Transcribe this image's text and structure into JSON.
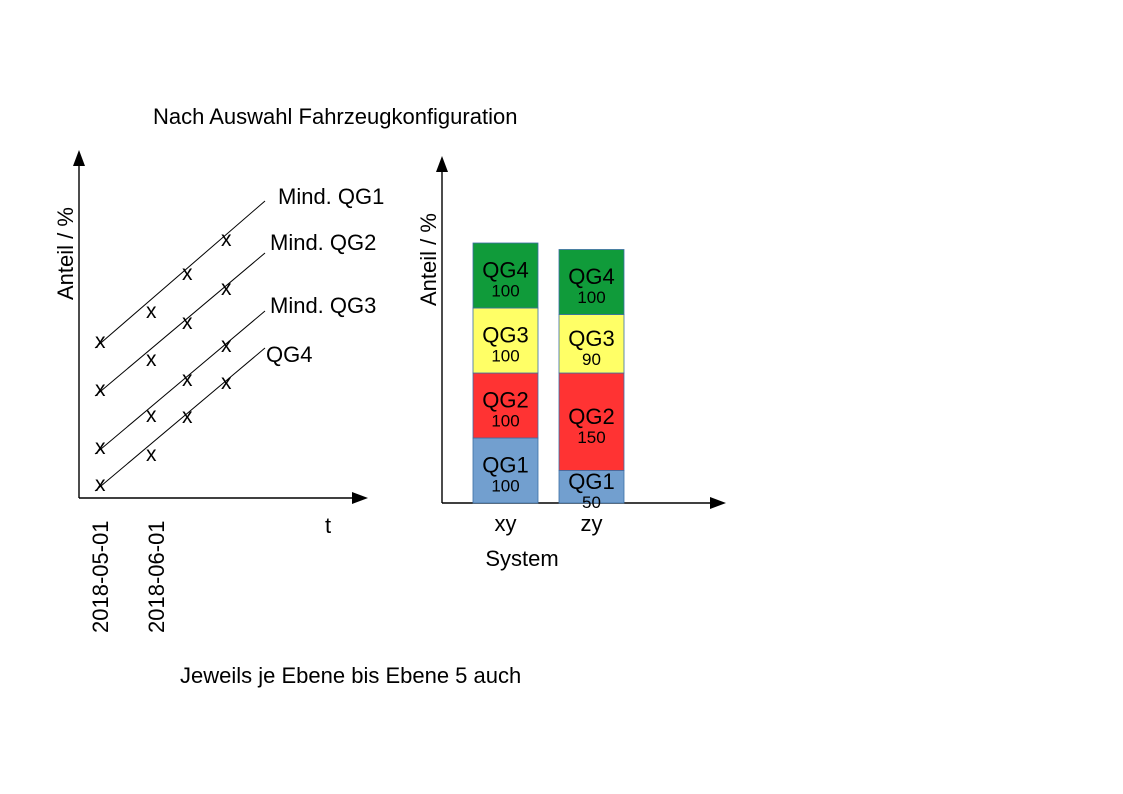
{
  "title": "Nach Auswahl Fahrzeugkonfiguration",
  "footer": "Jeweils je Ebene bis Ebene 5 auch",
  "colors": {
    "QG1": "#729fcf",
    "QG2": "#ff3333",
    "QG3": "#ffff66",
    "QG4": "#109b3a",
    "line": "#000000"
  },
  "left_chart": {
    "y_axis_label": "Anteil / %",
    "x_axis_label": "t",
    "dates": [
      "2018-05-01",
      "2018-06-01"
    ],
    "marker": "x",
    "lines": [
      {
        "label": "Mind. QG1"
      },
      {
        "label": "Mind. QG2"
      },
      {
        "label": "Mind. QG3"
      },
      {
        "label": "QG4"
      }
    ]
  },
  "chart_data": {
    "type": "bar",
    "stacked": true,
    "ylabel": "Anteil / %",
    "xlabel": "System",
    "categories": [
      "xy",
      "zy"
    ],
    "series": [
      {
        "name": "QG1",
        "values": [
          100,
          50
        ]
      },
      {
        "name": "QG2",
        "values": [
          100,
          150
        ]
      },
      {
        "name": "QG3",
        "values": [
          100,
          90
        ]
      },
      {
        "name": "QG4",
        "values": [
          100,
          100
        ]
      }
    ]
  }
}
